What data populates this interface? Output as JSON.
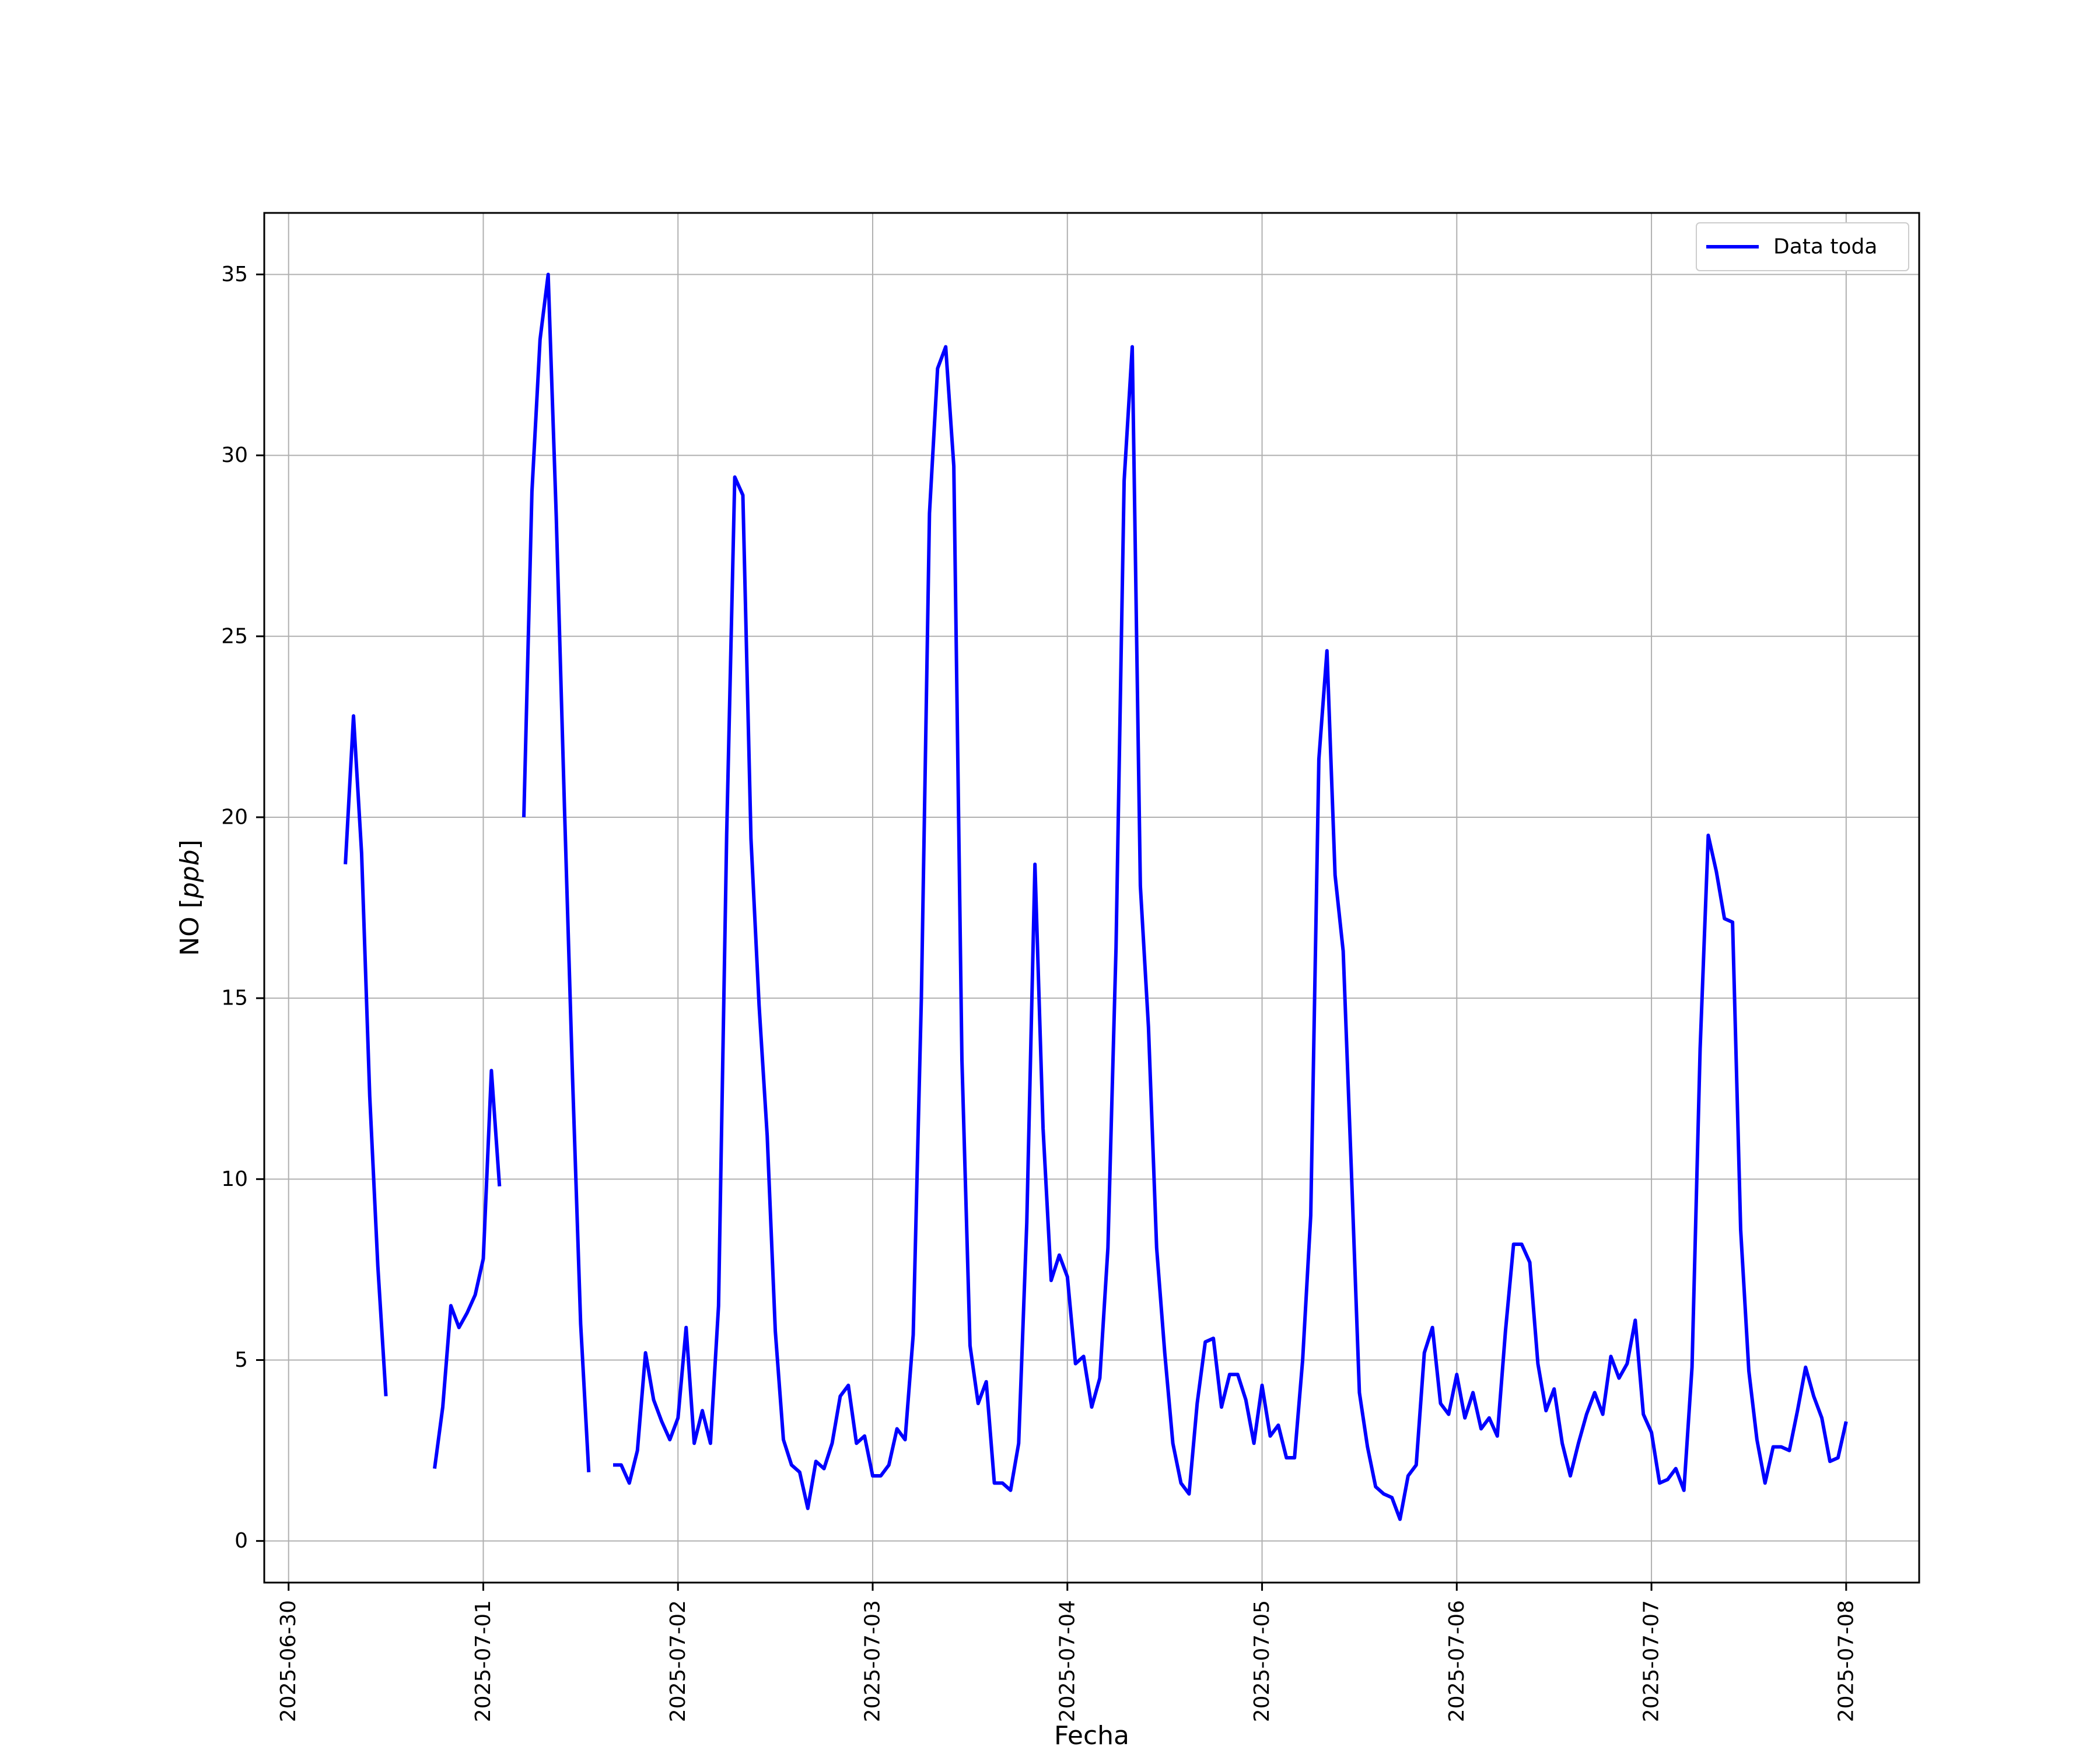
{
  "chart_data": {
    "type": "line",
    "title": "",
    "xlabel": "Fecha",
    "ylabel_prefix": "NO [",
    "ylabel_unit": "ppb",
    "ylabel_suffix": "]",
    "x_start": "2025-06-30",
    "x_ticks": [
      "2025-06-30",
      "2025-07-01",
      "2025-07-02",
      "2025-07-03",
      "2025-07-04",
      "2025-07-05",
      "2025-07-06",
      "2025-07-07",
      "2025-07-08"
    ],
    "y_ticks": [
      0,
      5,
      10,
      15,
      20,
      25,
      30,
      35
    ],
    "ylim": [
      -1.15,
      36.7
    ],
    "xlim": [
      "2025-06-29 21:00",
      "2025-07-08 09:00"
    ],
    "grid": true,
    "legend": "top-right",
    "colors": {
      "line": "#0000ff",
      "grid": "#b0b0b0"
    },
    "series": [
      {
        "name": "Data toda",
        "segments": [
          [
            [
              "2025-06-30 07:00",
              18.7
            ],
            [
              "2025-06-30 08:00",
              22.8
            ],
            [
              "2025-06-30 09:00",
              19.0
            ],
            [
              "2025-06-30 10:00",
              12.3
            ],
            [
              "2025-06-30 11:00",
              7.6
            ],
            [
              "2025-06-30 12:00",
              4.0
            ]
          ],
          [
            [
              "2025-06-30 18:00",
              2.0
            ],
            [
              "2025-06-30 19:00",
              3.7
            ],
            [
              "2025-06-30 20:00",
              6.5
            ],
            [
              "2025-06-30 21:00",
              5.9
            ],
            [
              "2025-06-30 22:00",
              6.3
            ],
            [
              "2025-06-30 23:00",
              6.8
            ],
            [
              "2025-07-01 00:00",
              7.8
            ],
            [
              "2025-07-01 01:00",
              13.0
            ],
            [
              "2025-07-01 02:00",
              9.8
            ]
          ],
          [
            [
              "2025-07-01 05:00",
              20.0
            ],
            [
              "2025-07-01 06:00",
              29.0
            ],
            [
              "2025-07-01 07:00",
              33.2
            ],
            [
              "2025-07-01 08:00",
              35.0
            ],
            [
              "2025-07-01 09:00",
              28.3
            ],
            [
              "2025-07-01 10:00",
              20.3
            ],
            [
              "2025-07-01 11:00",
              12.8
            ],
            [
              "2025-07-01 12:00",
              6.0
            ],
            [
              "2025-07-01 13:00",
              1.9
            ]
          ],
          [
            [
              "2025-07-01 16:00",
              2.1
            ],
            [
              "2025-07-01 17:00",
              2.1
            ],
            [
              "2025-07-01 18:00",
              1.6
            ],
            [
              "2025-07-01 19:00",
              2.5
            ],
            [
              "2025-07-01 20:00",
              5.2
            ],
            [
              "2025-07-01 21:00",
              3.9
            ],
            [
              "2025-07-01 22:00",
              3.3
            ],
            [
              "2025-07-01 23:00",
              2.8
            ],
            [
              "2025-07-02 00:00",
              3.4
            ],
            [
              "2025-07-02 01:00",
              5.9
            ],
            [
              "2025-07-02 02:00",
              2.7
            ],
            [
              "2025-07-02 03:00",
              3.6
            ],
            [
              "2025-07-02 04:00",
              2.7
            ],
            [
              "2025-07-02 05:00",
              6.5
            ],
            [
              "2025-07-02 06:00",
              19.5
            ],
            [
              "2025-07-02 07:00",
              29.4
            ],
            [
              "2025-07-02 08:00",
              28.9
            ],
            [
              "2025-07-02 09:00",
              19.4
            ],
            [
              "2025-07-02 10:00",
              14.8
            ],
            [
              "2025-07-02 11:00",
              11.2
            ],
            [
              "2025-07-02 12:00",
              5.8
            ],
            [
              "2025-07-02 13:00",
              2.8
            ],
            [
              "2025-07-02 14:00",
              2.1
            ],
            [
              "2025-07-02 15:00",
              1.9
            ],
            [
              "2025-07-02 16:00",
              0.9
            ],
            [
              "2025-07-02 17:00",
              2.2
            ],
            [
              "2025-07-02 18:00",
              2.0
            ],
            [
              "2025-07-02 19:00",
              2.7
            ],
            [
              "2025-07-02 20:00",
              4.0
            ],
            [
              "2025-07-02 21:00",
              4.3
            ],
            [
              "2025-07-02 22:00",
              2.7
            ],
            [
              "2025-07-02 23:00",
              2.9
            ],
            [
              "2025-07-03 00:00",
              1.8
            ],
            [
              "2025-07-03 01:00",
              1.8
            ],
            [
              "2025-07-03 02:00",
              2.1
            ],
            [
              "2025-07-03 03:00",
              3.1
            ],
            [
              "2025-07-03 04:00",
              2.8
            ],
            [
              "2025-07-03 05:00",
              5.7
            ],
            [
              "2025-07-03 06:00",
              15.0
            ],
            [
              "2025-07-03 07:00",
              28.4
            ],
            [
              "2025-07-03 08:00",
              32.4
            ],
            [
              "2025-07-03 09:00",
              33.0
            ],
            [
              "2025-07-03 10:00",
              29.7
            ],
            [
              "2025-07-03 11:00",
              13.3
            ],
            [
              "2025-07-03 12:00",
              5.4
            ],
            [
              "2025-07-03 13:00",
              3.8
            ],
            [
              "2025-07-03 14:00",
              4.4
            ],
            [
              "2025-07-03 15:00",
              1.6
            ],
            [
              "2025-07-03 16:00",
              1.6
            ],
            [
              "2025-07-03 17:00",
              1.4
            ],
            [
              "2025-07-03 18:00",
              2.7
            ],
            [
              "2025-07-03 19:00",
              8.8
            ],
            [
              "2025-07-03 20:00",
              18.7
            ],
            [
              "2025-07-03 21:00",
              11.4
            ],
            [
              "2025-07-03 22:00",
              7.2
            ],
            [
              "2025-07-03 23:00",
              7.9
            ],
            [
              "2025-07-04 00:00",
              7.3
            ],
            [
              "2025-07-04 01:00",
              4.9
            ],
            [
              "2025-07-04 02:00",
              5.1
            ],
            [
              "2025-07-04 03:00",
              3.7
            ],
            [
              "2025-07-04 04:00",
              4.5
            ],
            [
              "2025-07-04 05:00",
              8.1
            ],
            [
              "2025-07-04 06:00",
              16.4
            ],
            [
              "2025-07-04 07:00",
              29.3
            ],
            [
              "2025-07-04 08:00",
              33.0
            ],
            [
              "2025-07-04 09:00",
              18.1
            ],
            [
              "2025-07-04 10:00",
              14.2
            ],
            [
              "2025-07-04 11:00",
              8.1
            ],
            [
              "2025-07-04 12:00",
              5.2
            ],
            [
              "2025-07-04 13:00",
              2.7
            ],
            [
              "2025-07-04 14:00",
              1.6
            ],
            [
              "2025-07-04 15:00",
              1.3
            ],
            [
              "2025-07-04 16:00",
              3.8
            ],
            [
              "2025-07-04 17:00",
              5.5
            ],
            [
              "2025-07-04 18:00",
              5.6
            ],
            [
              "2025-07-04 19:00",
              3.7
            ],
            [
              "2025-07-04 20:00",
              4.6
            ],
            [
              "2025-07-04 21:00",
              4.6
            ],
            [
              "2025-07-04 22:00",
              3.9
            ],
            [
              "2025-07-04 23:00",
              2.7
            ],
            [
              "2025-07-05 00:00",
              4.3
            ],
            [
              "2025-07-05 01:00",
              2.9
            ],
            [
              "2025-07-05 02:00",
              3.2
            ],
            [
              "2025-07-05 03:00",
              2.3
            ],
            [
              "2025-07-05 04:00",
              2.3
            ],
            [
              "2025-07-05 05:00",
              5.0
            ],
            [
              "2025-07-05 06:00",
              9.0
            ],
            [
              "2025-07-05 07:00",
              21.6
            ],
            [
              "2025-07-05 08:00",
              24.6
            ],
            [
              "2025-07-05 09:00",
              18.4
            ],
            [
              "2025-07-05 10:00",
              16.3
            ],
            [
              "2025-07-05 11:00",
              10.3
            ],
            [
              "2025-07-05 12:00",
              4.1
            ],
            [
              "2025-07-05 13:00",
              2.6
            ],
            [
              "2025-07-05 14:00",
              1.5
            ],
            [
              "2025-07-05 15:00",
              1.3
            ],
            [
              "2025-07-05 16:00",
              1.2
            ],
            [
              "2025-07-05 17:00",
              0.6
            ],
            [
              "2025-07-05 18:00",
              1.8
            ],
            [
              "2025-07-05 19:00",
              2.1
            ],
            [
              "2025-07-05 20:00",
              5.2
            ],
            [
              "2025-07-05 21:00",
              5.9
            ],
            [
              "2025-07-05 22:00",
              3.8
            ],
            [
              "2025-07-05 23:00",
              3.5
            ],
            [
              "2025-07-06 00:00",
              4.6
            ],
            [
              "2025-07-06 01:00",
              3.4
            ],
            [
              "2025-07-06 02:00",
              4.1
            ],
            [
              "2025-07-06 03:00",
              3.1
            ],
            [
              "2025-07-06 04:00",
              3.4
            ],
            [
              "2025-07-06 05:00",
              2.9
            ],
            [
              "2025-07-06 06:00",
              5.8
            ],
            [
              "2025-07-06 07:00",
              8.2
            ],
            [
              "2025-07-06 08:00",
              8.2
            ],
            [
              "2025-07-06 09:00",
              7.7
            ],
            [
              "2025-07-06 10:00",
              4.9
            ],
            [
              "2025-07-06 11:00",
              3.6
            ],
            [
              "2025-07-06 12:00",
              4.2
            ],
            [
              "2025-07-06 13:00",
              2.7
            ],
            [
              "2025-07-06 14:00",
              1.8
            ],
            [
              "2025-07-06 15:00",
              2.7
            ],
            [
              "2025-07-06 16:00",
              3.5
            ],
            [
              "2025-07-06 17:00",
              4.1
            ],
            [
              "2025-07-06 18:00",
              3.5
            ],
            [
              "2025-07-06 19:00",
              5.1
            ],
            [
              "2025-07-06 20:00",
              4.5
            ],
            [
              "2025-07-06 21:00",
              4.9
            ],
            [
              "2025-07-06 22:00",
              6.1
            ],
            [
              "2025-07-06 23:00",
              3.5
            ],
            [
              "2025-07-07 00:00",
              3.0
            ],
            [
              "2025-07-07 01:00",
              1.6
            ],
            [
              "2025-07-07 02:00",
              1.7
            ],
            [
              "2025-07-07 03:00",
              2.0
            ],
            [
              "2025-07-07 04:00",
              1.4
            ],
            [
              "2025-07-07 05:00",
              4.8
            ],
            [
              "2025-07-07 06:00",
              13.6
            ],
            [
              "2025-07-07 07:00",
              19.5
            ],
            [
              "2025-07-07 08:00",
              18.5
            ],
            [
              "2025-07-07 09:00",
              17.2
            ],
            [
              "2025-07-07 10:00",
              17.1
            ],
            [
              "2025-07-07 11:00",
              8.6
            ],
            [
              "2025-07-07 12:00",
              4.7
            ],
            [
              "2025-07-07 13:00",
              2.8
            ],
            [
              "2025-07-07 14:00",
              1.6
            ],
            [
              "2025-07-07 15:00",
              2.6
            ],
            [
              "2025-07-07 16:00",
              2.6
            ],
            [
              "2025-07-07 17:00",
              2.5
            ],
            [
              "2025-07-07 18:00",
              3.6
            ],
            [
              "2025-07-07 19:00",
              4.8
            ],
            [
              "2025-07-07 20:00",
              4.0
            ],
            [
              "2025-07-07 21:00",
              3.4
            ],
            [
              "2025-07-07 22:00",
              2.2
            ],
            [
              "2025-07-07 23:00",
              2.3
            ],
            [
              "2025-07-08 00:00",
              3.3
            ]
          ]
        ]
      }
    ]
  }
}
